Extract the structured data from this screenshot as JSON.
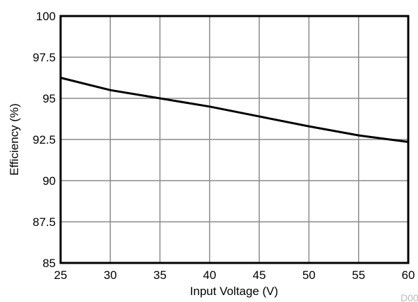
{
  "chart_data": {
    "type": "line",
    "xlabel": "Input Voltage (V)",
    "ylabel": "Efficiency (%)",
    "xlim": [
      25,
      60
    ],
    "ylim": [
      85,
      100
    ],
    "xticks": [
      25,
      30,
      35,
      40,
      45,
      50,
      55,
      60
    ],
    "yticks": [
      85,
      87.5,
      90,
      92.5,
      95,
      97.5,
      100
    ],
    "grid": true,
    "series": [
      {
        "x": [
          25,
          30,
          35,
          40,
          45,
          50,
          55,
          60
        ],
        "y": [
          96.25,
          95.5,
          95.0,
          94.5,
          93.9,
          93.3,
          92.75,
          92.35
        ],
        "color": "#000000"
      }
    ],
    "annotation": "D00"
  }
}
